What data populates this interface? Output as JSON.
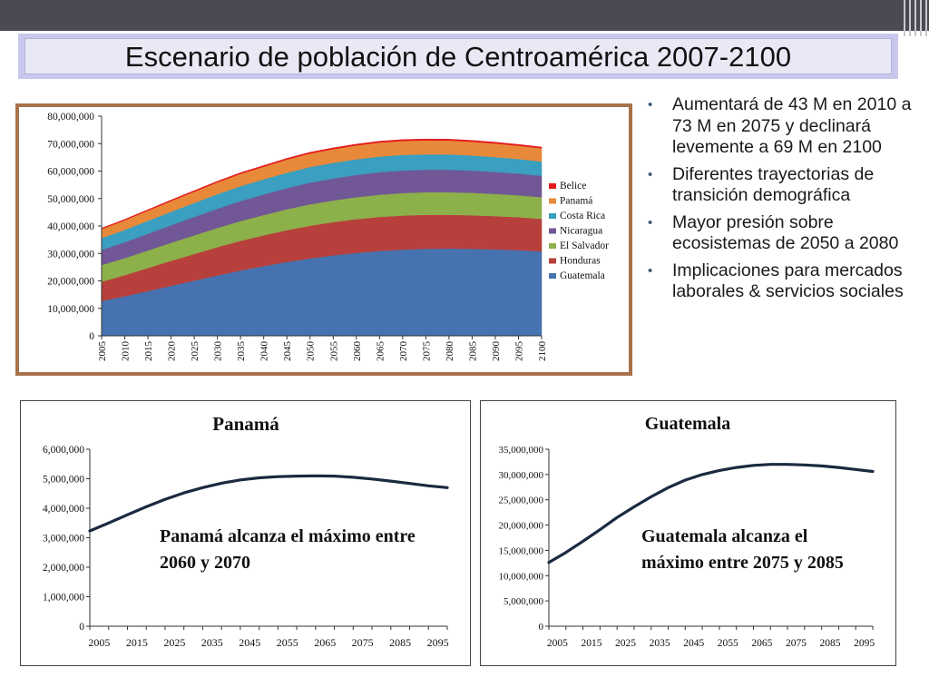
{
  "slide": {
    "title": "Escenario de población de Centroamérica  2007-2100"
  },
  "bullets": [
    " Aumentará de 43 M en 2010 a 73 M en 2075 y declinará levemente a 69 M en 2100",
    "Diferentes trayectorias de transición demográfica",
    "Mayor presión sobre ecosistemas de 2050 a 2080",
    "Implicaciones para mercados laborales & servicios sociales"
  ],
  "colors": {
    "Belice": "#e31a1c",
    "Panamá": "#e8893a",
    "Costa Rica": "#3a9fc0",
    "Nicaragua": "#715796",
    "El Salvador": "#8cb04a",
    "Honduras": "#b8403c",
    "Guatemala": "#4673b0",
    "line": "#1a2a40"
  },
  "chart_data": [
    {
      "type": "area",
      "stacked": true,
      "x": [
        2005,
        2010,
        2015,
        2020,
        2025,
        2030,
        2035,
        2040,
        2045,
        2050,
        2055,
        2060,
        2065,
        2070,
        2075,
        2080,
        2085,
        2090,
        2095,
        2100
      ],
      "yticks": [
        "0",
        "10,000,000",
        "20,000,000",
        "30,000,000",
        "40,000,000",
        "50,000,000",
        "60,000,000",
        "70,000,000",
        "80,000,000"
      ],
      "ylim": [
        0,
        80000000
      ],
      "legend_position": "right",
      "series": [
        {
          "name": "Guatemala",
          "values": [
            12700000,
            14400000,
            16300000,
            18200000,
            20100000,
            22000000,
            23800000,
            25400000,
            26900000,
            28200000,
            29300000,
            30200000,
            30900000,
            31400000,
            31700000,
            31800000,
            31700000,
            31500000,
            31200000,
            30800000
          ]
        },
        {
          "name": "Honduras",
          "values": [
            7000000,
            7700000,
            8400000,
            9100000,
            9700000,
            10300000,
            10800000,
            11200000,
            11600000,
            11900000,
            12100000,
            12300000,
            12400000,
            12400000,
            12400000,
            12300000,
            12200000,
            12100000,
            12000000,
            11800000
          ]
        },
        {
          "name": "El Salvador",
          "values": [
            6100000,
            6200000,
            6400000,
            6600000,
            6800000,
            7000000,
            7200000,
            7400000,
            7600000,
            7800000,
            7900000,
            8000000,
            8100000,
            8200000,
            8200000,
            8200000,
            8200000,
            8100000,
            8000000,
            7900000
          ]
        },
        {
          "name": "Nicaragua",
          "values": [
            5500000,
            5800000,
            6100000,
            6400000,
            6700000,
            7000000,
            7300000,
            7500000,
            7700000,
            7900000,
            8000000,
            8100000,
            8200000,
            8200000,
            8200000,
            8200000,
            8100000,
            8000000,
            7900000,
            7800000
          ]
        },
        {
          "name": "Costa Rica",
          "values": [
            4300000,
            4500000,
            4700000,
            4900000,
            5100000,
            5300000,
            5400000,
            5500000,
            5600000,
            5700000,
            5700000,
            5700000,
            5700000,
            5700000,
            5600000,
            5600000,
            5500000,
            5400000,
            5300000,
            5200000
          ]
        },
        {
          "name": "Panamá",
          "values": [
            3300000,
            3500000,
            3700000,
            3900000,
            4100000,
            4300000,
            4500000,
            4600000,
            4800000,
            4900000,
            5000000,
            5050000,
            5100000,
            5100000,
            5100000,
            5050000,
            5000000,
            4950000,
            4850000,
            4800000
          ]
        },
        {
          "name": "Belice",
          "values": [
            300000,
            320000,
            340000,
            360000,
            380000,
            400000,
            420000,
            430000,
            440000,
            450000,
            460000,
            470000,
            470000,
            480000,
            480000,
            480000,
            470000,
            470000,
            460000,
            450000
          ]
        }
      ]
    },
    {
      "type": "line",
      "title": "Panamá",
      "x": [
        2005,
        2010,
        2015,
        2020,
        2025,
        2030,
        2035,
        2040,
        2045,
        2050,
        2055,
        2060,
        2065,
        2070,
        2075,
        2080,
        2085,
        2090,
        2095,
        2100
      ],
      "xticks": [
        "2005",
        "2015",
        "2025",
        "2035",
        "2045",
        "2055",
        "2065",
        "2075",
        "2085",
        "2095"
      ],
      "yticks": [
        "0",
        "1,000,000",
        "2,000,000",
        "3,000,000",
        "4,000,000",
        "5,000,000",
        "6,000,000"
      ],
      "ylim": [
        0,
        6000000
      ],
      "values": [
        3230000,
        3500000,
        3780000,
        4050000,
        4300000,
        4520000,
        4700000,
        4850000,
        4960000,
        5030000,
        5070000,
        5090000,
        5100000,
        5090000,
        5050000,
        4990000,
        4920000,
        4840000,
        4760000,
        4700000
      ],
      "annotation": "Panamá alcanza el máximo entre 2060 y 2070"
    },
    {
      "type": "line",
      "title": "Guatemala",
      "x": [
        2005,
        2010,
        2015,
        2020,
        2025,
        2030,
        2035,
        2040,
        2045,
        2050,
        2055,
        2060,
        2065,
        2070,
        2075,
        2080,
        2085,
        2090,
        2095,
        2100
      ],
      "xticks": [
        "2005",
        "2015",
        "2025",
        "2035",
        "2045",
        "2055",
        "2065",
        "2075",
        "2085",
        "2095"
      ],
      "yticks": [
        "0",
        "5,000,000",
        "10,000,000",
        "15,000,000",
        "20,000,000",
        "25,000,000",
        "30,000,000",
        "35,000,000"
      ],
      "ylim": [
        0,
        35000000
      ],
      "values": [
        12600000,
        14600000,
        16800000,
        19100000,
        21500000,
        23600000,
        25600000,
        27400000,
        28900000,
        30000000,
        30800000,
        31400000,
        31800000,
        32000000,
        32000000,
        31900000,
        31700000,
        31400000,
        31000000,
        30600000
      ],
      "annotation": "Guatemala alcanza el máximo entre 2075 y 2085"
    }
  ]
}
